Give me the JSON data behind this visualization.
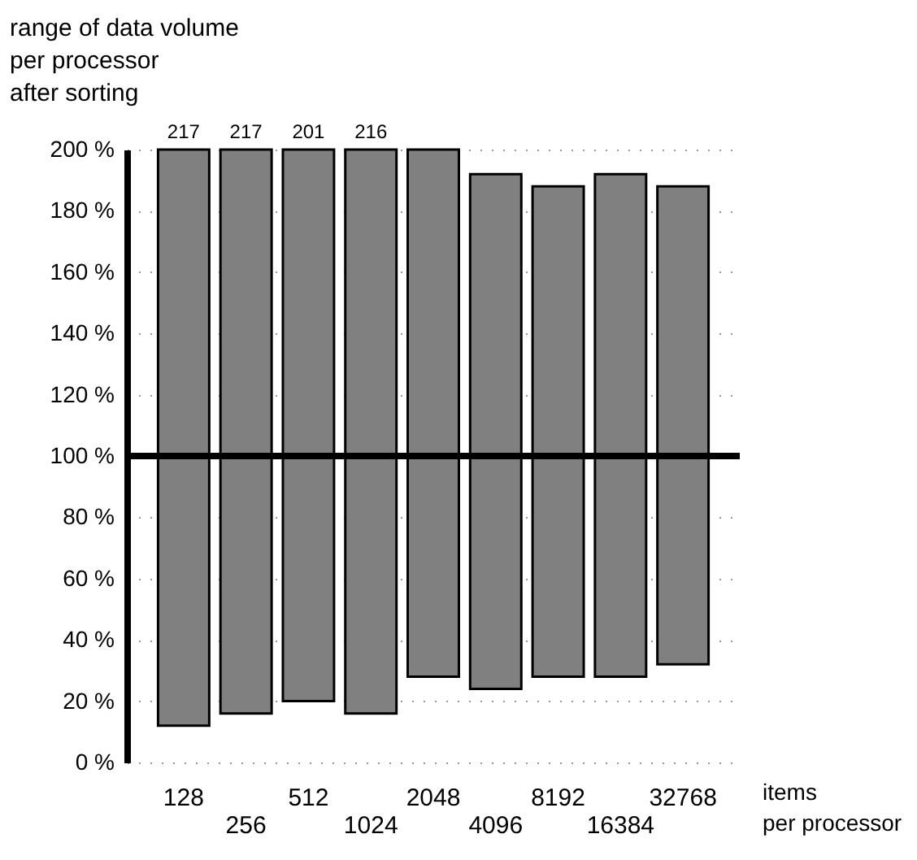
{
  "chart_data": {
    "type": "bar",
    "ylabel": "range of data volume\nper processor\nafter sorting",
    "xlabel": "items\nper processor",
    "categories": [
      "128",
      "256",
      "512",
      "1024",
      "2048",
      "4096",
      "8192",
      "16384",
      "32768"
    ],
    "base": [
      12,
      16,
      20,
      16,
      28,
      24,
      28,
      28,
      32
    ],
    "values": [
      188,
      184,
      180,
      184,
      172,
      168,
      160,
      164,
      156
    ],
    "color": "#808080",
    "ylim": [
      0,
      200
    ],
    "yticks": [
      {
        "value": 0,
        "label": "0 %"
      },
      {
        "value": 20,
        "label": "20 %"
      },
      {
        "value": 40,
        "label": "40 %"
      },
      {
        "value": 60,
        "label": "60 %"
      },
      {
        "value": 80,
        "label": "80 %"
      },
      {
        "value": 100,
        "label": "100 %"
      },
      {
        "value": 120,
        "label": "120 %"
      },
      {
        "value": 140,
        "label": "140 %"
      },
      {
        "value": 160,
        "label": "160 %"
      },
      {
        "value": 180,
        "label": "180 %"
      },
      {
        "value": 200,
        "label": "200 %"
      }
    ],
    "grid": "y",
    "ref_lines": [
      {
        "axis": "y",
        "value": 100,
        "color": "#000000"
      }
    ],
    "annotations": [
      {
        "text": "217",
        "x": "128",
        "y": 200
      },
      {
        "text": "217",
        "x": "256",
        "y": 200
      },
      {
        "text": "201",
        "x": "512",
        "y": 200
      },
      {
        "text": "216",
        "x": "1024",
        "y": 200
      }
    ]
  }
}
